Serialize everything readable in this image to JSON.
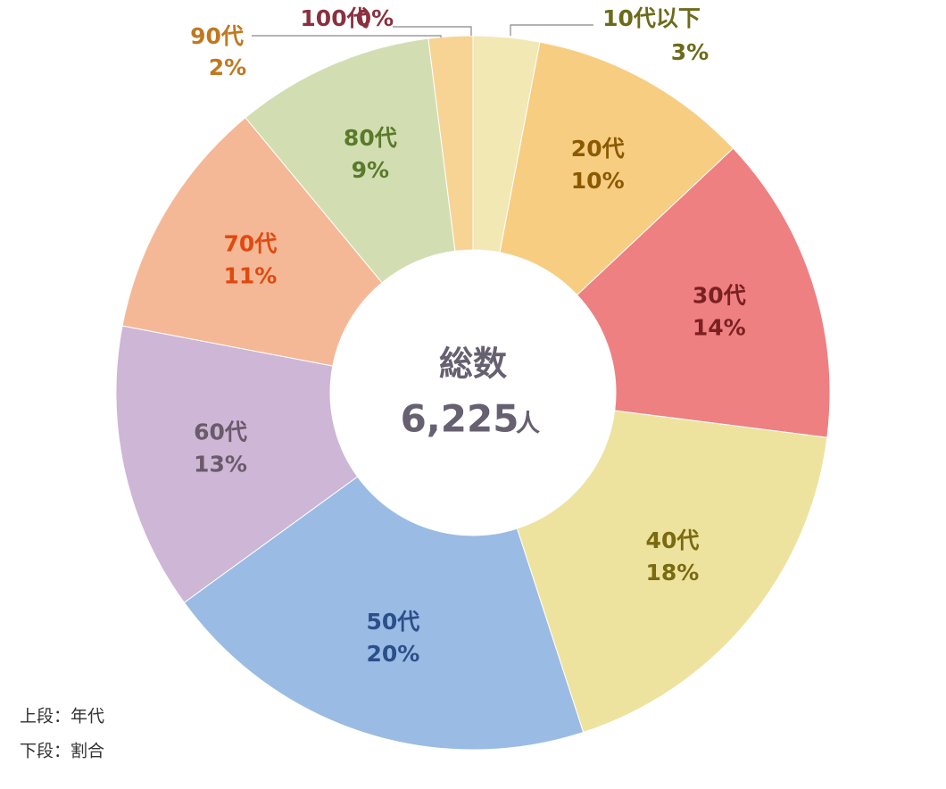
{
  "chart_data": {
    "type": "donut",
    "categories": [
      "10代以下",
      "20代",
      "30代",
      "40代",
      "50代",
      "60代",
      "70代",
      "80代",
      "90代",
      "100代"
    ],
    "values": [
      3,
      10,
      14,
      18,
      20,
      13,
      11,
      9,
      2,
      0
    ],
    "value_labels": [
      "3%",
      "10%",
      "14%",
      "18%",
      "20%",
      "13%",
      "11%",
      "9%",
      "2%",
      "0%"
    ],
    "colors": [
      "#f2e8b4",
      "#f7cd82",
      "#ee8082",
      "#ede39f",
      "#9abbe4",
      "#cdb6d6",
      "#f5b896",
      "#d2deb2",
      "#f7d394",
      "#f2c4c4"
    ],
    "label_colors": [
      "#6b6b1a",
      "#8a5a00",
      "#7a2020",
      "#7a6a10",
      "#2b4f8a",
      "#6a5a6a",
      "#e04a10",
      "#5a7a2a",
      "#c07820",
      "#8a3040"
    ],
    "center_title": "総数",
    "total": 6225,
    "total_label": "6,225",
    "total_unit": "人",
    "notes": [
      "上段：年代",
      "下段：割合"
    ]
  }
}
